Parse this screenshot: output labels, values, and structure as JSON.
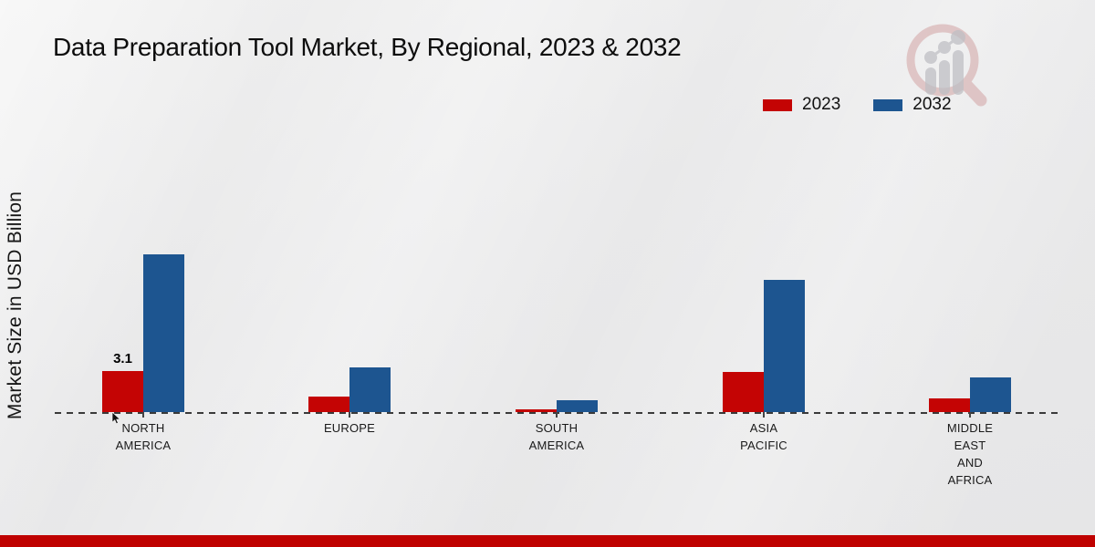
{
  "legend": {
    "items": [
      {
        "label": "2023",
        "color": "#c40404"
      },
      {
        "label": "2032",
        "color": "#1d5590"
      }
    ]
  },
  "footer": {
    "stripe_color": "#bf0100"
  },
  "logo": {
    "name": "market-research-magnifier-logo"
  },
  "chart_data": {
    "type": "bar",
    "title": "Data Preparation Tool Market, By Regional, 2023 & 2032",
    "xlabel": "",
    "ylabel": "Market Size in USD Billion",
    "units": "USD Billion",
    "categories": [
      "NORTH AMERICA",
      "EUROPE",
      "SOUTH AMERICA",
      "ASIA PACIFIC",
      "MIDDLE EAST AND AFRICA"
    ],
    "category_display": [
      "NORTH\nAMERICA",
      "EUROPE",
      "SOUTH\nAMERICA",
      "ASIA\nPACIFIC",
      "MIDDLE\nEAST\nAND\nAFRICA"
    ],
    "series": [
      {
        "name": "2023",
        "color": "#c40404",
        "values": [
          3.1,
          1.2,
          0.2,
          3.0,
          1.0
        ],
        "value_labels": [
          "3.1",
          "",
          "",
          "",
          ""
        ]
      },
      {
        "name": "2032",
        "color": "#1d5590",
        "values": [
          11.9,
          3.4,
          0.9,
          10.0,
          2.6
        ],
        "value_labels": [
          "",
          "",
          "",
          "",
          ""
        ]
      }
    ],
    "ylim": [
      0,
      12.5
    ],
    "grid": false,
    "legend_position": "top-right",
    "baseline_style": "dashed"
  }
}
